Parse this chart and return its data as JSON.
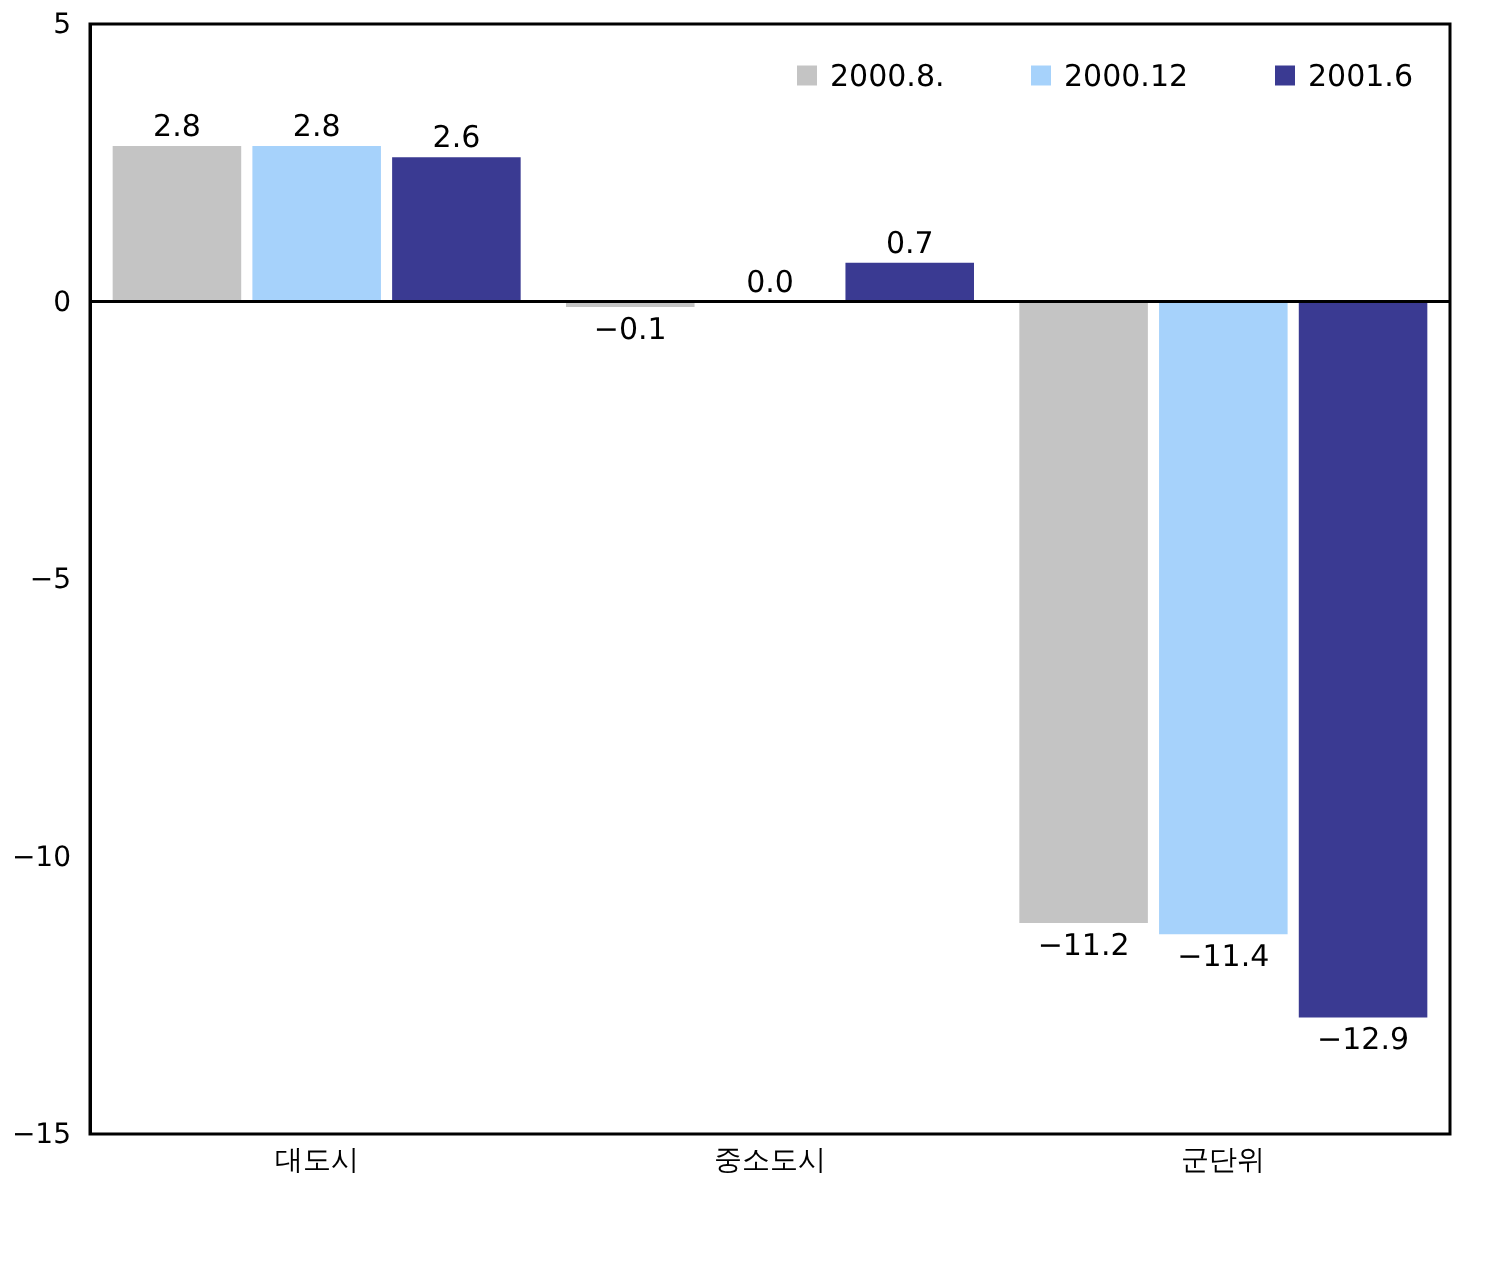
{
  "chart_data": {
    "type": "bar",
    "categories": [
      "대도시",
      "중소도시",
      "군단위"
    ],
    "series": [
      {
        "name": "2000.8.",
        "color": "#c4c4c4",
        "values": [
          2.8,
          -0.1,
          -11.2
        ],
        "value_labels": [
          "2.8",
          "−0.1",
          "−11.2"
        ]
      },
      {
        "name": "2000.12",
        "color": "#a6d2fb",
        "values": [
          2.8,
          0.0,
          -11.4
        ],
        "value_labels": [
          "2.8",
          "0.0",
          "−11.4"
        ]
      },
      {
        "name": "2001.6",
        "color": "#3a3a92",
        "values": [
          2.6,
          0.7,
          -12.9
        ],
        "value_labels": [
          "2.6",
          "0.7",
          "−12.9"
        ]
      }
    ],
    "ylim": [
      -15,
      5
    ],
    "yticks": [
      -15,
      -10,
      -5,
      0,
      5
    ],
    "legend": "top right",
    "ref_lines": [
      {
        "axis": "y",
        "value": 0,
        "color": "#000000"
      }
    ]
  }
}
